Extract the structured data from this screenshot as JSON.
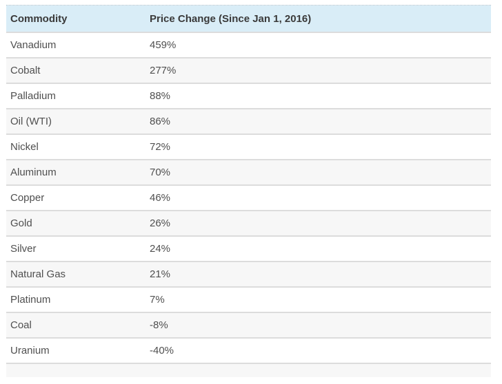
{
  "table": {
    "columns": {
      "commodity": {
        "label": "Commodity"
      },
      "price_change": {
        "label": "Price Change (Since Jan 1, 2016)"
      }
    },
    "rows": [
      {
        "commodity": "Vanadium",
        "change": "459%"
      },
      {
        "commodity": "Cobalt",
        "change": "277%"
      },
      {
        "commodity": "Palladium",
        "change": "88%"
      },
      {
        "commodity": "Oil (WTI)",
        "change": "86%"
      },
      {
        "commodity": "Nickel",
        "change": "72%"
      },
      {
        "commodity": "Aluminum",
        "change": "70%"
      },
      {
        "commodity": "Copper",
        "change": "46%"
      },
      {
        "commodity": "Gold",
        "change": "26%"
      },
      {
        "commodity": "Silver",
        "change": "24%"
      },
      {
        "commodity": "Natural Gas",
        "change": "21%"
      },
      {
        "commodity": "Platinum",
        "change": "7%"
      },
      {
        "commodity": "Coal",
        "change": "-8%"
      },
      {
        "commodity": "Uranium",
        "change": "-40%"
      }
    ],
    "colors": {
      "header_background": "#d9edf7",
      "header_text": "#3a3a3a",
      "row_stripe": "#f7f7f7",
      "row_text": "#4f4f4f",
      "row_border": "#dcdcdc",
      "top_dotted_border": "#a2b8c4"
    }
  },
  "chart_data": {
    "type": "table",
    "title": "",
    "columns": [
      "Commodity",
      "Price Change (Since Jan 1, 2016)"
    ],
    "rows": [
      [
        "Vanadium",
        "459%"
      ],
      [
        "Cobalt",
        "277%"
      ],
      [
        "Palladium",
        "88%"
      ],
      [
        "Oil (WTI)",
        "86%"
      ],
      [
        "Nickel",
        "72%"
      ],
      [
        "Aluminum",
        "70%"
      ],
      [
        "Copper",
        "46%"
      ],
      [
        "Gold",
        "26%"
      ],
      [
        "Silver",
        "24%"
      ],
      [
        "Natural Gas",
        "21%"
      ],
      [
        "Platinum",
        "7%"
      ],
      [
        "Coal",
        "-8%"
      ],
      [
        "Uranium",
        "-40%"
      ]
    ],
    "values_percent": [
      459,
      277,
      88,
      86,
      72,
      70,
      46,
      26,
      24,
      21,
      7,
      -8,
      -40
    ],
    "layout": {
      "striped": true,
      "sorted": "descending by price change"
    }
  }
}
